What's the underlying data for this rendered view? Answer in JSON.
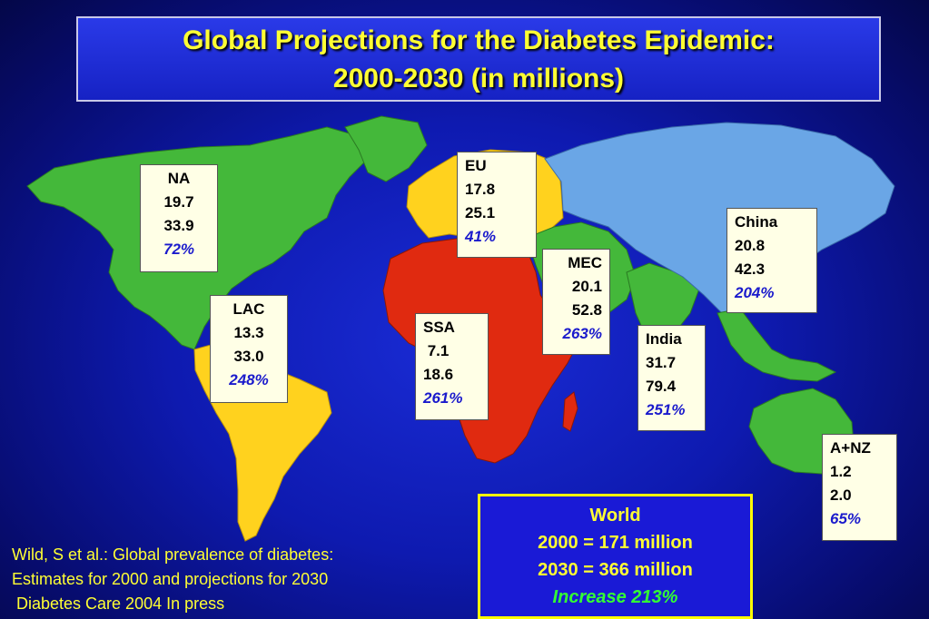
{
  "title": {
    "line1": "Global  Projections for the Diabetes Epidemic:",
    "line2": "2000-2030 (in millions)"
  },
  "regions": [
    {
      "id": "na",
      "name": "NA",
      "v2000": "19.7",
      "v2030": "33.9",
      "pct": "72%",
      "color": "#44b83a"
    },
    {
      "id": "lac",
      "name": "LAC",
      "v2000": "13.3",
      "v2030": "33.0",
      "pct": "248%",
      "color": "#ffd21e"
    },
    {
      "id": "eu",
      "name": "EU",
      "v2000": "17.8",
      "v2030": "25.1",
      "pct": "41%",
      "color": "#ffd21e"
    },
    {
      "id": "ssa",
      "name": "SSA",
      "v2000": " 7.1",
      "v2030": "18.6",
      "pct": "261%",
      "color": "#e02a10"
    },
    {
      "id": "mec",
      "name": "MEC",
      "v2000": "20.1",
      "v2030": "52.8",
      "pct": "263%",
      "color": "#44b83a"
    },
    {
      "id": "india",
      "name": "India",
      "v2000": "31.7",
      "v2030": "79.4",
      "pct": "251%",
      "color": "#44b83a"
    },
    {
      "id": "china",
      "name": "China",
      "v2000": "20.8",
      "v2030": "42.3",
      "pct": "204%",
      "color": "#6aa6e6"
    },
    {
      "id": "anz",
      "name": "A+NZ",
      "v2000": "1.2",
      "v2030": "2.0",
      "pct": "65%",
      "color": "#44b83a"
    }
  ],
  "world": {
    "title": "World",
    "line2000": "2000 = 171 million",
    "line2030": "2030 = 366 million",
    "increase": "Increase 213%"
  },
  "citation": "Wild, S et al.: Global prevalence of diabetes:\nEstimates for 2000 and projections for 2030\n Diabetes Care 2004 In press"
}
